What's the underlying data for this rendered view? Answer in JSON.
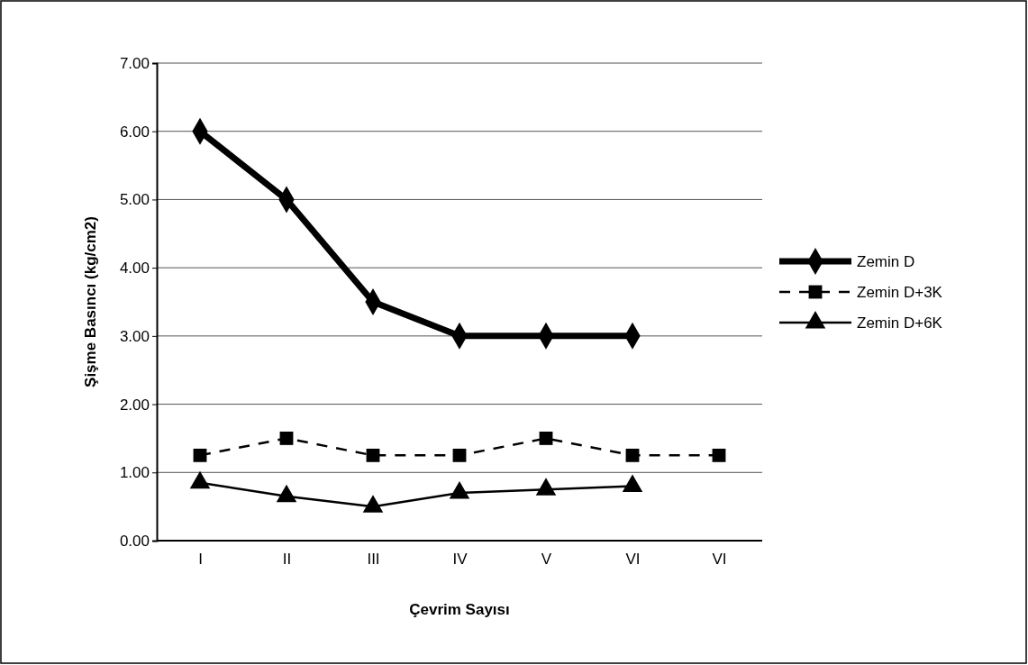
{
  "chart_data": {
    "type": "line",
    "xlabel": "Çevrim Sayısı",
    "ylabel": "Şişme Basıncı (kg/cm2)",
    "categories": [
      "I",
      "II",
      "III",
      "IV",
      "V",
      "VI",
      "VI"
    ],
    "series": [
      {
        "name": "Zemin D",
        "color": "#000000",
        "marker": "diamond",
        "line_style": "solid",
        "values": [
          6.0,
          5.0,
          3.5,
          3.0,
          3.0,
          3.0,
          null
        ]
      },
      {
        "name": "Zemin D+3K",
        "color": "#000000",
        "marker": "square",
        "line_style": "dashed",
        "values": [
          1.25,
          1.5,
          1.25,
          1.25,
          1.5,
          1.25,
          1.25
        ]
      },
      {
        "name": "Zemin D+6K",
        "color": "#000000",
        "marker": "triangle",
        "line_style": "solid",
        "values": [
          0.85,
          0.65,
          0.5,
          0.7,
          0.75,
          0.8,
          null
        ]
      }
    ],
    "ylim": [
      0,
      7
    ],
    "yticks": [
      {
        "value": 0,
        "label": "0.00"
      },
      {
        "value": 1,
        "label": "1.00"
      },
      {
        "value": 2,
        "label": "2.00"
      },
      {
        "value": 3,
        "label": "3.00"
      },
      {
        "value": 4,
        "label": "4.00"
      },
      {
        "value": 5,
        "label": "5.00"
      },
      {
        "value": 6,
        "label": "6.00"
      },
      {
        "value": 7,
        "label": "7.00"
      }
    ],
    "grid": "y",
    "legend": "right"
  }
}
